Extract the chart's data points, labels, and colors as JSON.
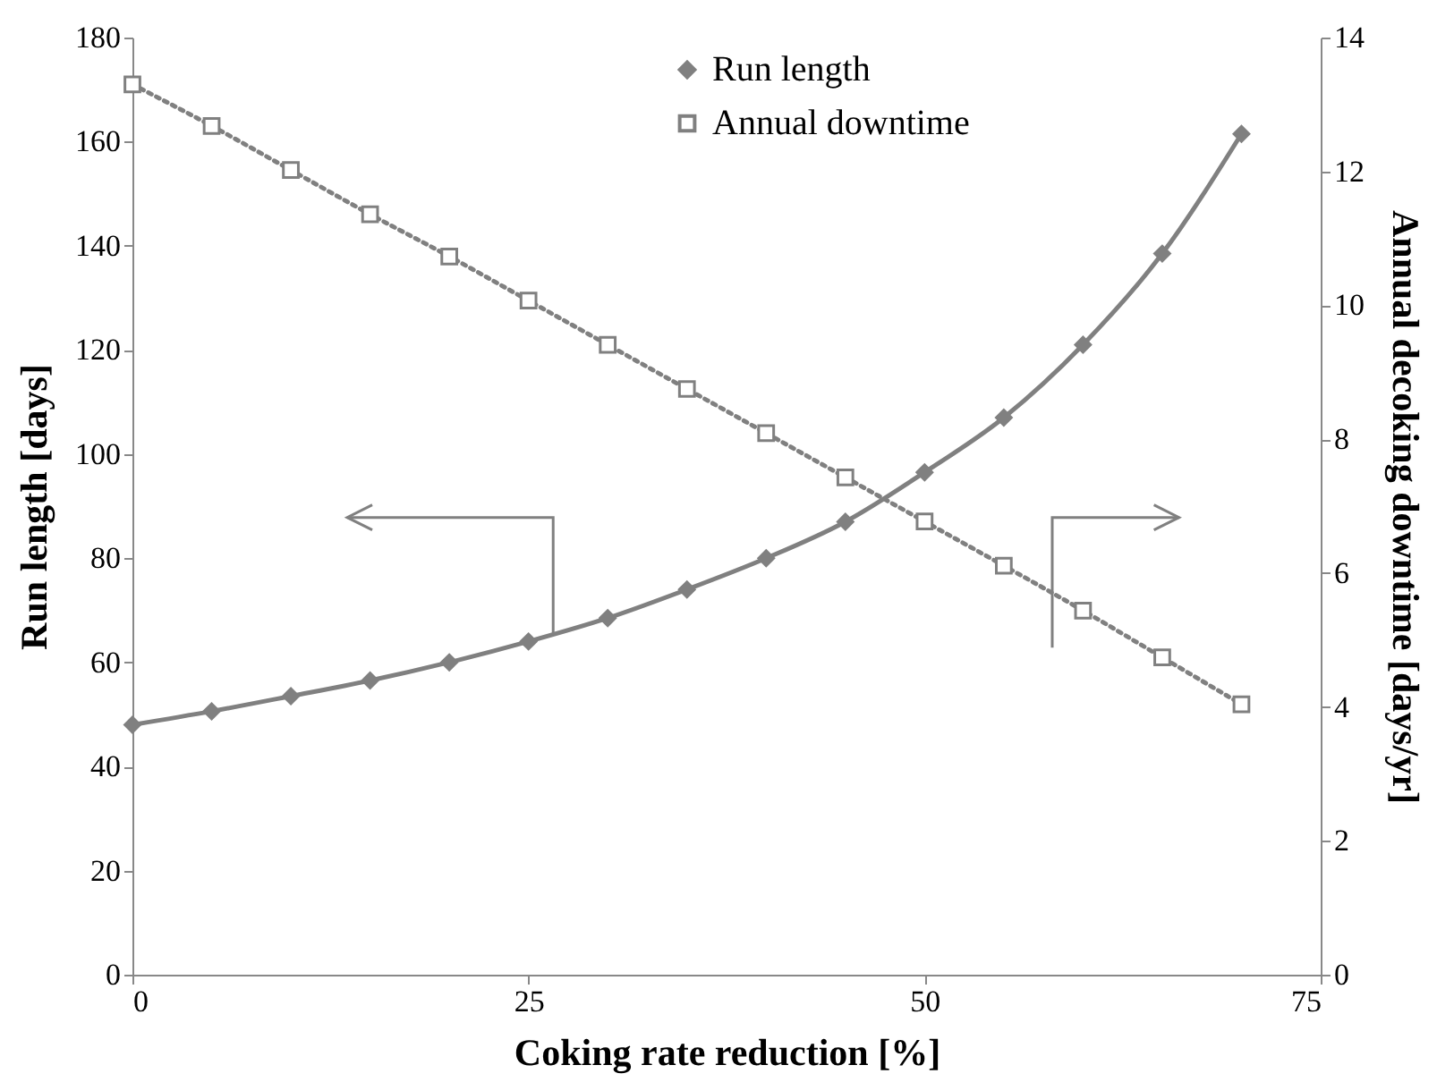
{
  "chart_data": {
    "type": "line",
    "xlabel": "Coking rate reduction [%]",
    "ylabel": "Run length [days]",
    "y2label": "Annual decoking downtime [days/yr]",
    "x": [
      0,
      5,
      10,
      15,
      20,
      25,
      30,
      35,
      40,
      45,
      50,
      55,
      60,
      65,
      70
    ],
    "series": [
      {
        "name": "Run length",
        "color": "#808080",
        "marker": "diamond",
        "line_style": "solid",
        "values": [
          48,
          50.6,
          53.5,
          56.5,
          60,
          64,
          68.5,
          74,
          80,
          87,
          96.5,
          107,
          121,
          138.5,
          161.5
        ]
      },
      {
        "name": "Annual downtime",
        "color": "#808080",
        "marker": "square",
        "line_style": "dotted",
        "axis": "y2",
        "values": [
          13.3,
          12.68,
          12.02,
          11.36,
          10.73,
          10.07,
          9.41,
          8.75,
          8.09,
          7.43,
          6.77,
          6.11,
          5.44,
          4.74,
          4.04
        ]
      }
    ],
    "xlim": [
      0,
      75
    ],
    "xticks": [
      0,
      25,
      50,
      75
    ],
    "ylim": [
      0,
      180
    ],
    "yticks": [
      0,
      20,
      40,
      60,
      80,
      100,
      120,
      140,
      160,
      180
    ],
    "y2lim": [
      0,
      14
    ],
    "y2ticks": [
      0,
      2,
      4,
      6,
      8,
      10,
      12,
      14
    ],
    "grid": false,
    "legend": "top"
  }
}
